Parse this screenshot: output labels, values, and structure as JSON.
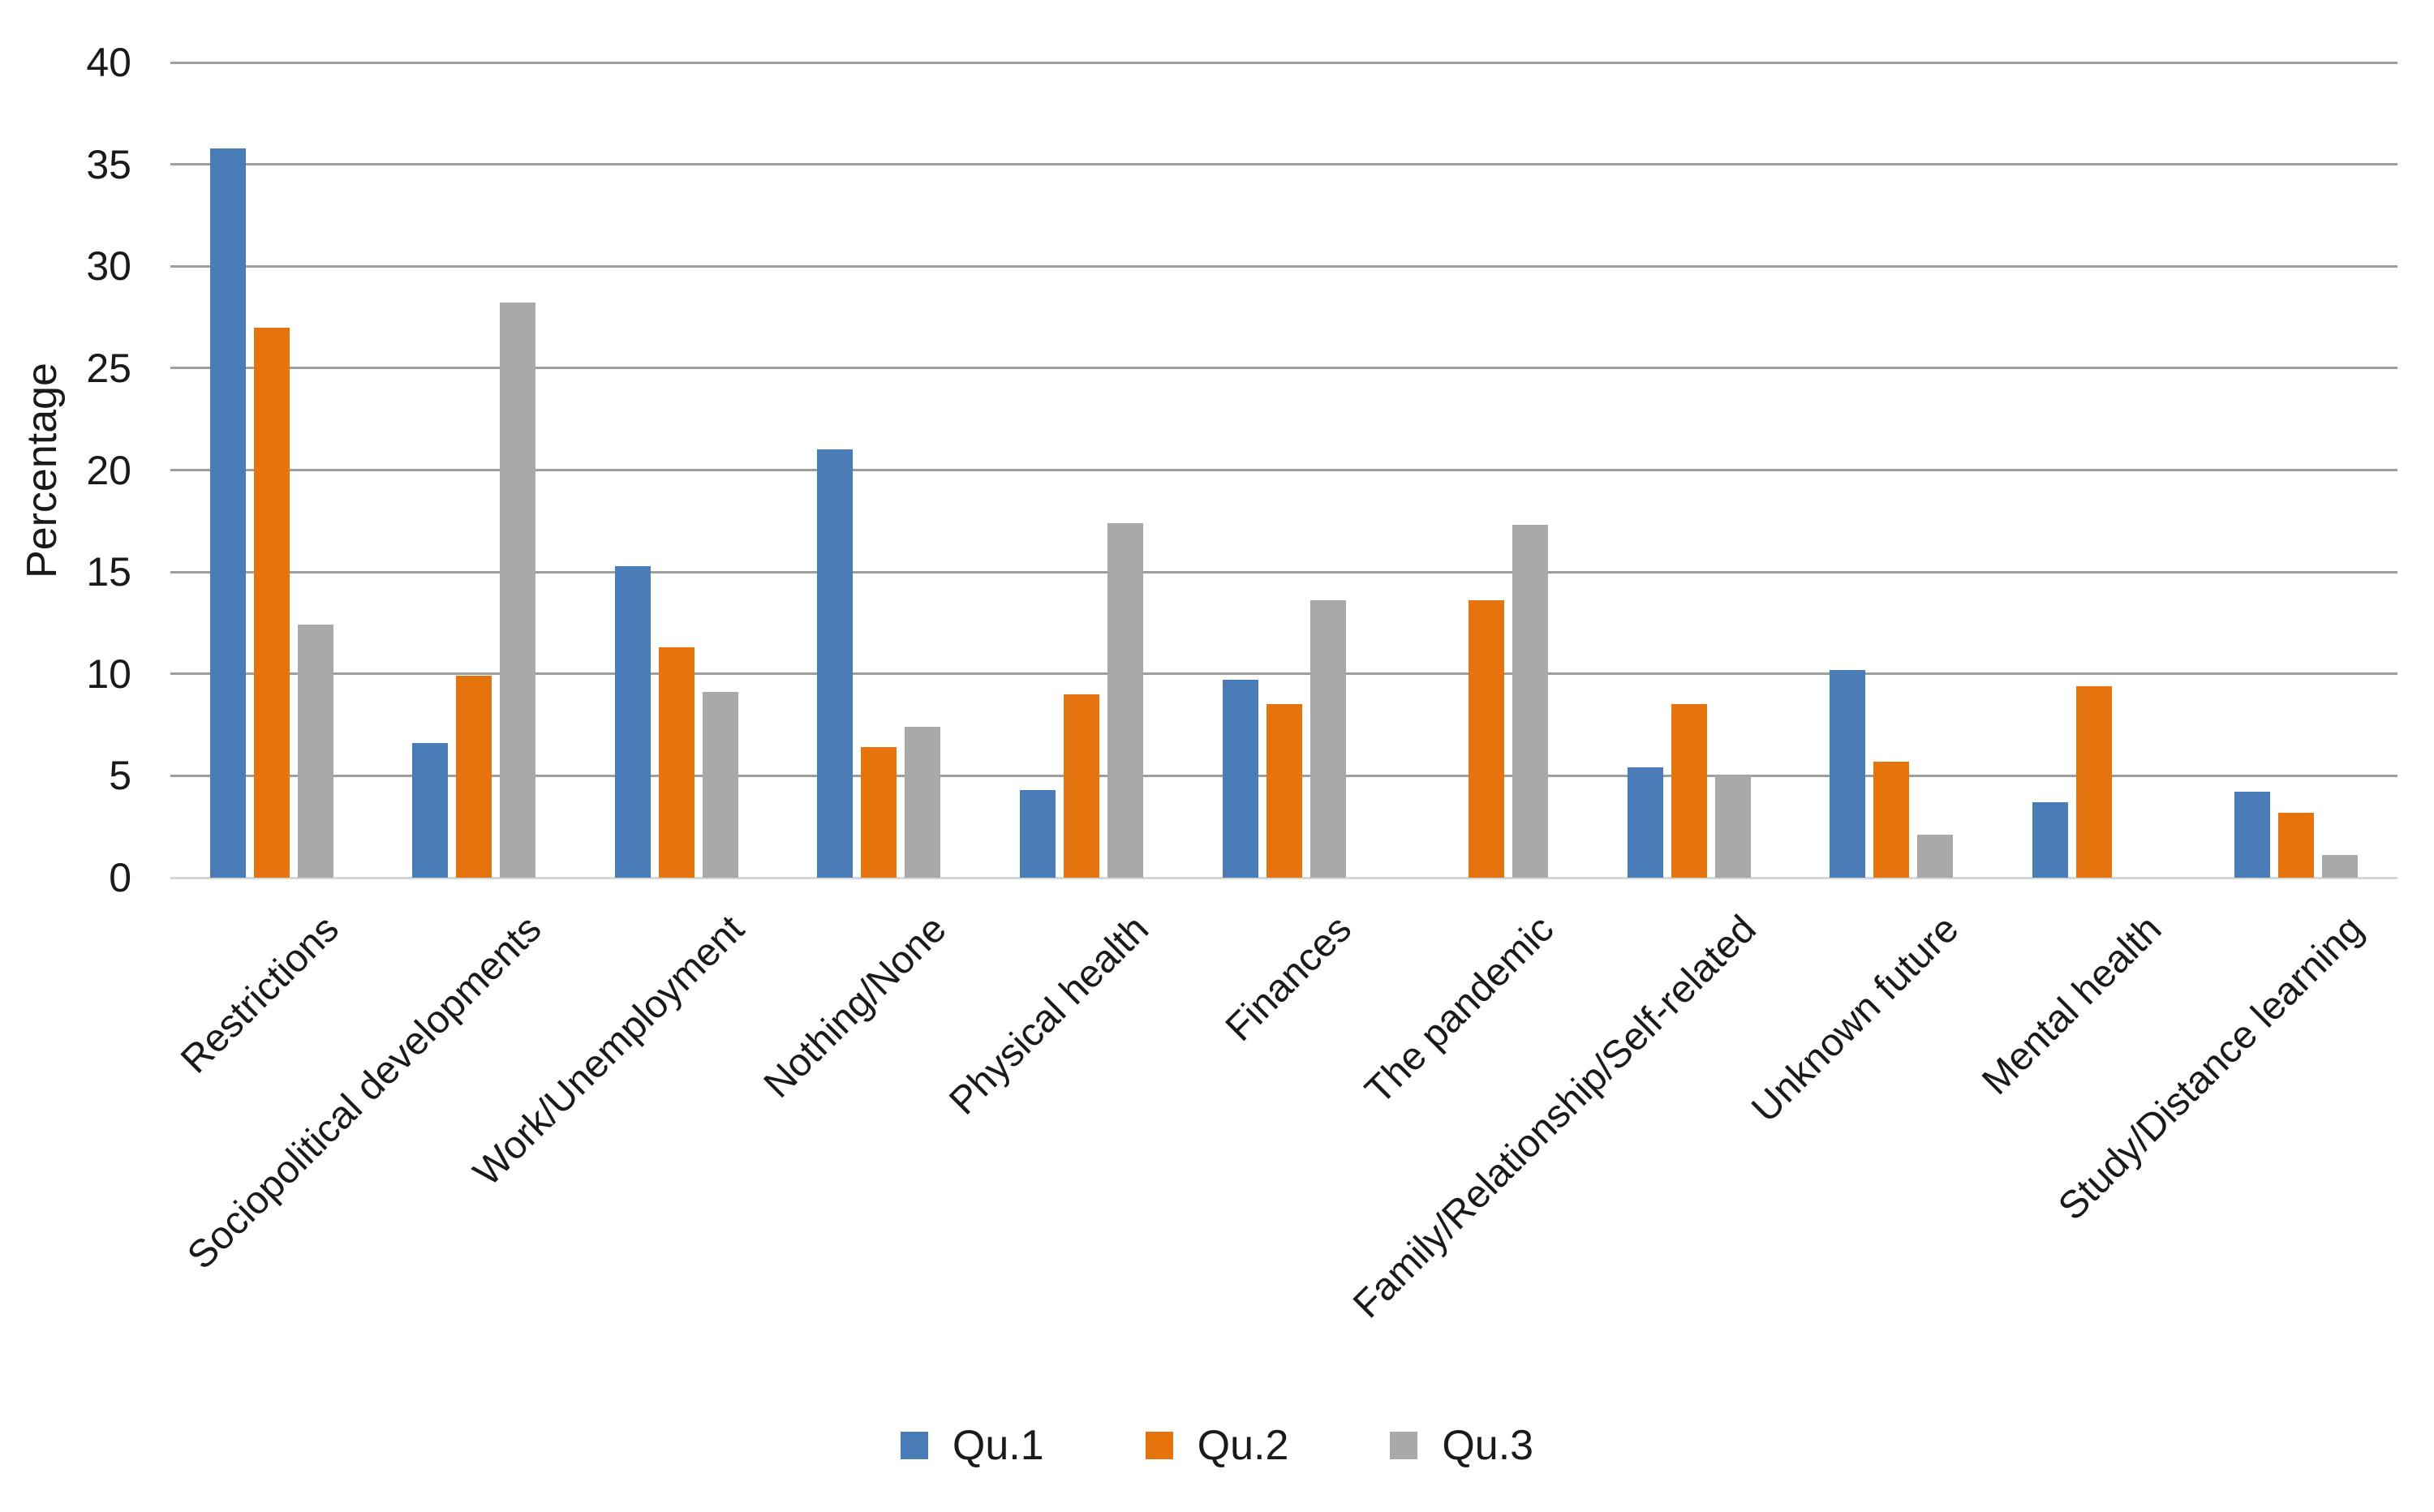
{
  "chart_data": {
    "type": "bar",
    "title": "",
    "xlabel": "",
    "ylabel": "Percentage",
    "ylim": [
      0,
      40
    ],
    "ytick_step": 5,
    "ytick_labels": [
      "0",
      "5",
      "10",
      "15",
      "20",
      "25",
      "30",
      "35",
      "40"
    ],
    "grid": true,
    "legend_position": "bottom",
    "categories": [
      "Restrictions",
      "Sociopolitical developments",
      "Work/Unemployment",
      "Nothing/None",
      "Physical health",
      "Finances",
      "The pandemic",
      "Family/Relationship/Self-related",
      "Unknown future",
      "Mental health",
      "Study/Distance learning"
    ],
    "series": [
      {
        "name": "Qu.1",
        "color": "#4A7CB8",
        "values": [
          35.8,
          6.6,
          15.3,
          21.0,
          4.3,
          9.7,
          0,
          5.4,
          10.2,
          3.7,
          4.2
        ]
      },
      {
        "name": "Qu.2",
        "color": "#E6740E",
        "values": [
          27.0,
          9.9,
          11.3,
          6.4,
          9.0,
          8.5,
          13.6,
          8.5,
          5.7,
          9.4,
          3.2
        ]
      },
      {
        "name": "Qu.3",
        "color": "#A9A9A9",
        "values": [
          12.4,
          28.2,
          9.1,
          7.4,
          17.4,
          13.6,
          17.3,
          5.0,
          2.1,
          0,
          1.1
        ]
      }
    ],
    "colors": {
      "qu1": "#4A7CB8",
      "qu2": "#E6740E",
      "qu3": "#A9A9A9",
      "gridline": "#9E9E9E",
      "axis_line": "#D6D6D6",
      "text": "#1A1A1A"
    }
  }
}
